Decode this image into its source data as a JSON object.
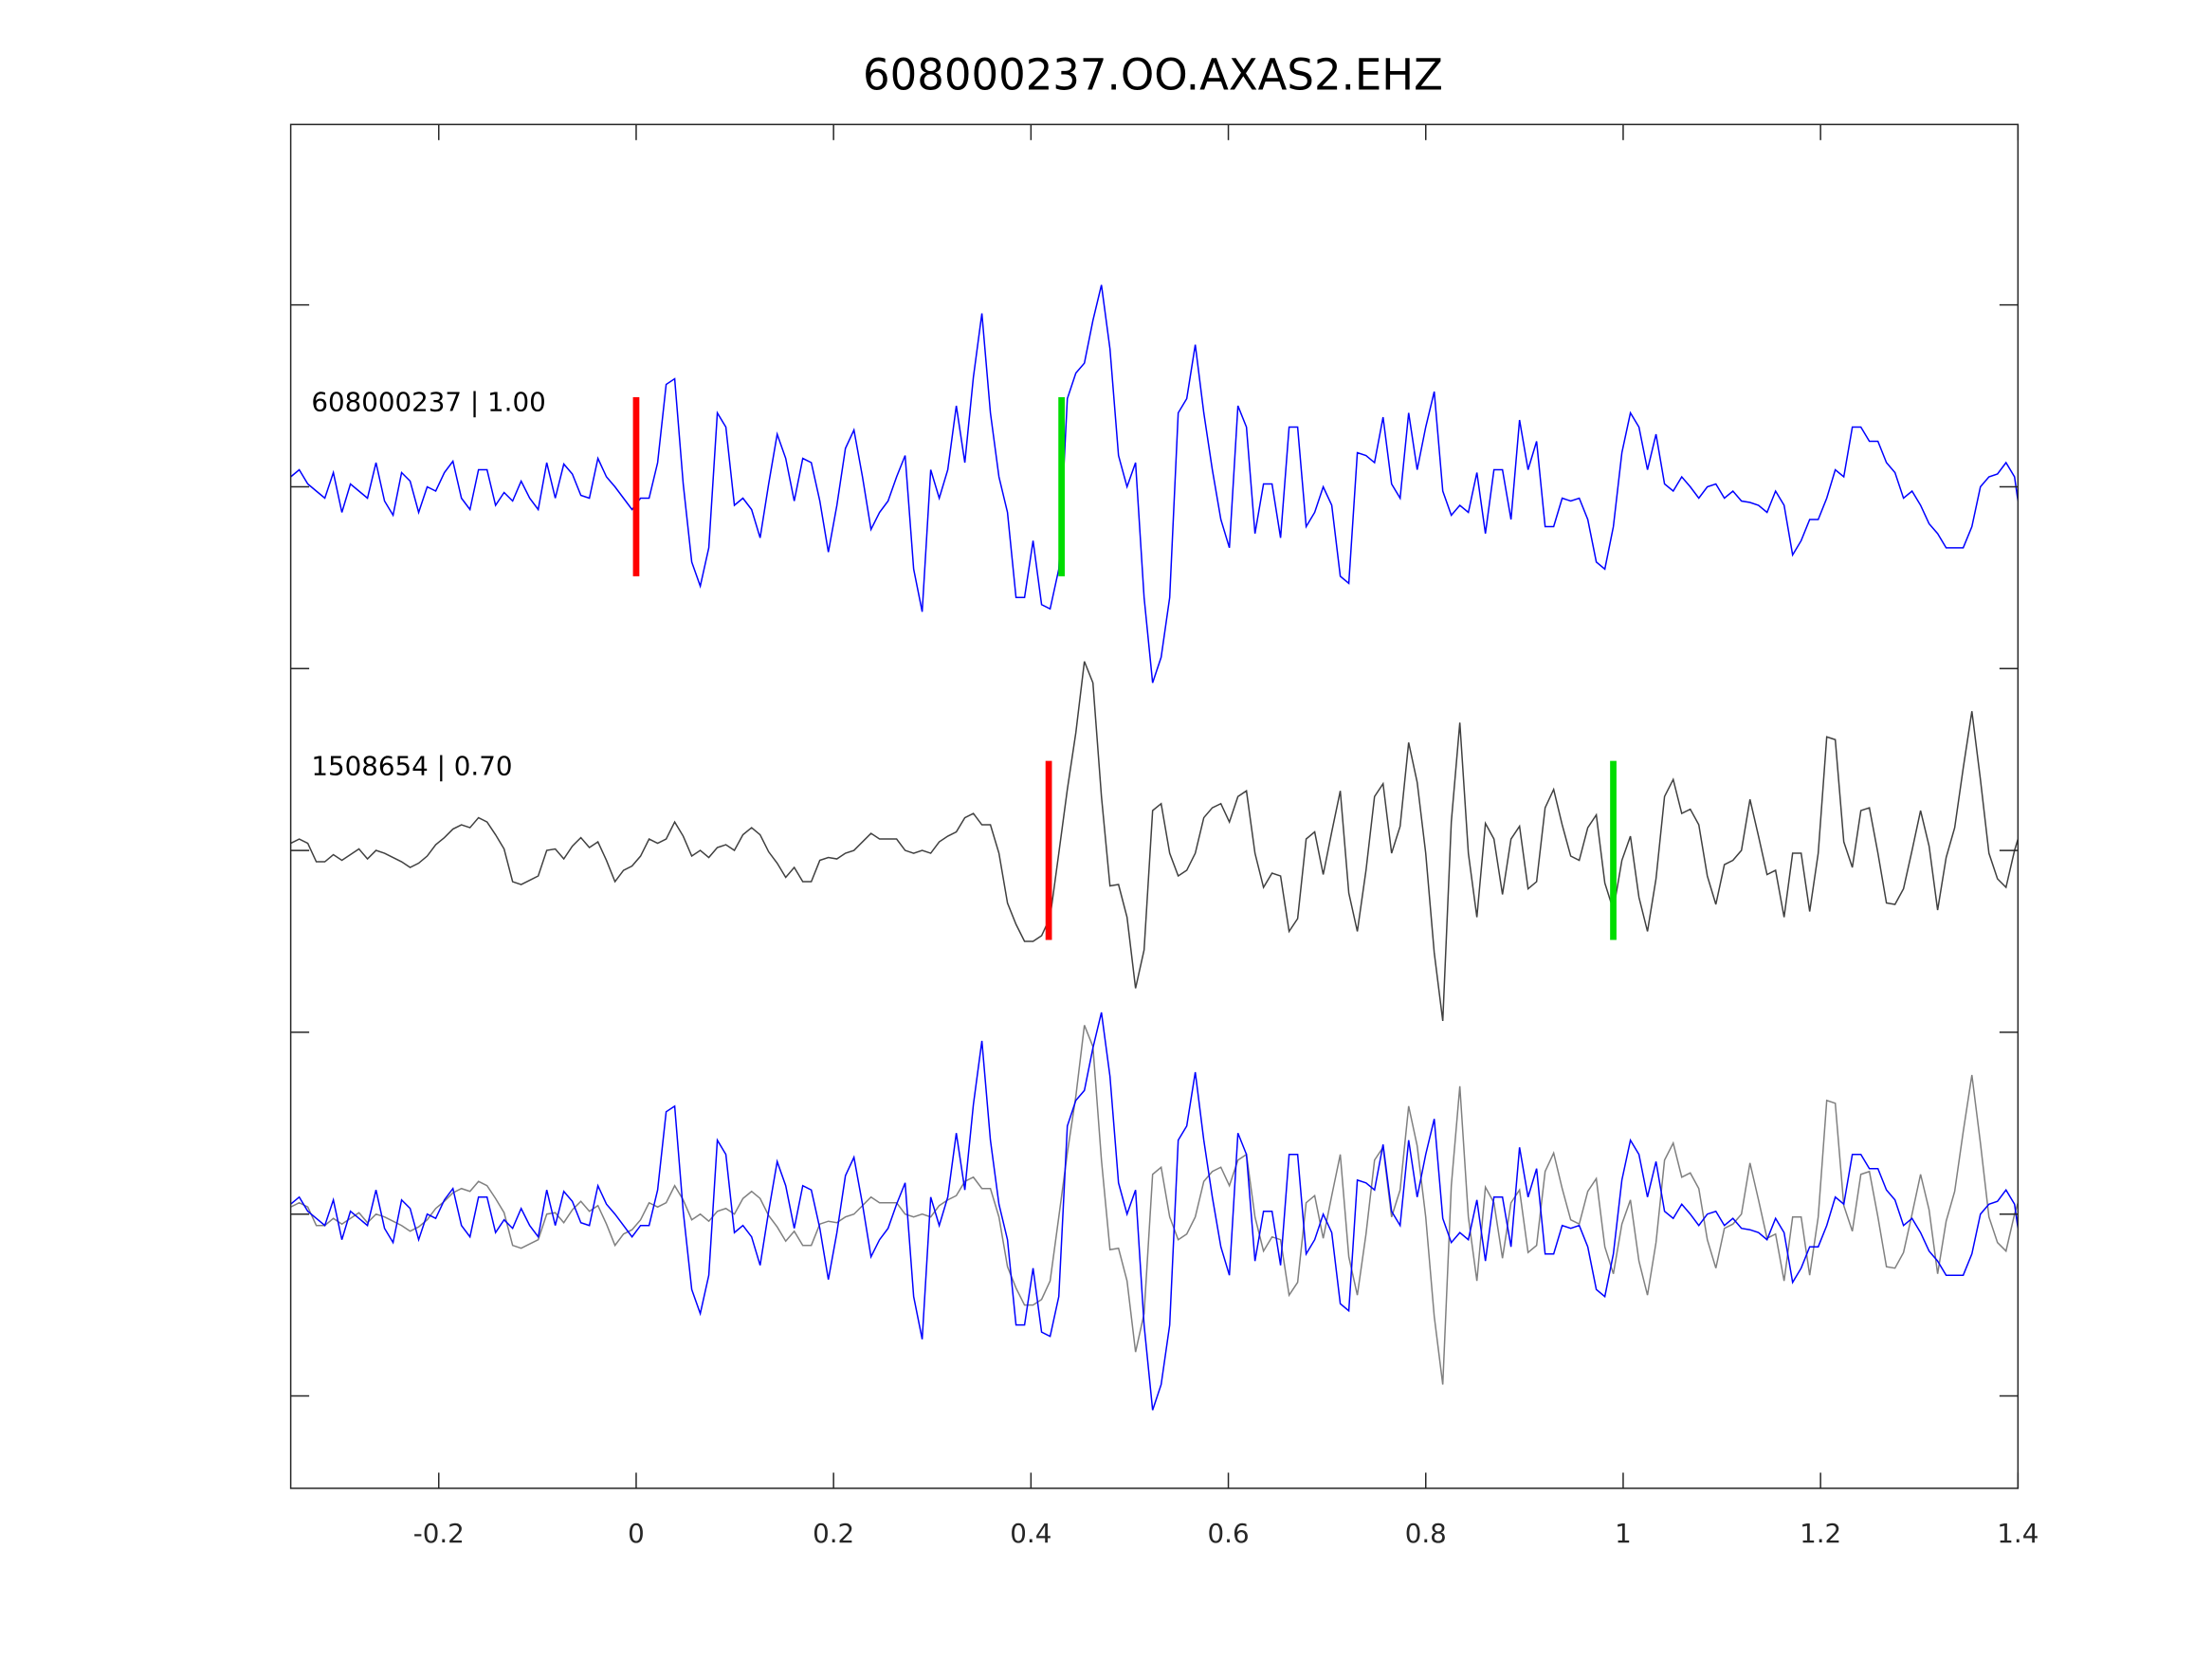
{
  "chart_data": {
    "type": "line",
    "title": "608000237.OO.AXAS2.EHZ",
    "xlabel": "",
    "ylabel": "",
    "xlim": [
      -0.35,
      1.4
    ],
    "ylim": [
      -705,
      255
    ],
    "xticks": [
      -0.2,
      0,
      0.2,
      0.4,
      0.6,
      0.8,
      1,
      1.2,
      1.4
    ],
    "xtick_labels": [
      "-0.2",
      "0",
      "0.2",
      "0.4",
      "0.6",
      "0.8",
      "1",
      "1.2",
      "1.4"
    ],
    "yticks": [
      128,
      0,
      -128,
      -256,
      -384,
      -512,
      -640
    ],
    "ytick_labels_visible": false,
    "grid": false,
    "amp_scale": 0.01,
    "traces": [
      {
        "name": "608000237",
        "label": "608000237 | 1.00",
        "color": "#0000ff",
        "offset": 0,
        "t_start": -0.35,
        "dt": 0.008646,
        "amp": [
          7,
          12,
          2,
          -3,
          -8,
          10,
          -18,
          2,
          -3,
          -8,
          17,
          -10,
          -20,
          10,
          4,
          -18,
          0,
          -3,
          10,
          18,
          -8,
          -16,
          12,
          12,
          -13,
          -4,
          -10,
          4,
          -8,
          -16,
          17,
          -8,
          16,
          9,
          -6,
          -8,
          20,
          7,
          0,
          -8,
          -16,
          -8,
          -8,
          17,
          72,
          76,
          2,
          -53,
          -70,
          -43,
          52,
          42,
          -13,
          -8,
          -16,
          -36,
          2,
          37,
          20,
          -10,
          20,
          17,
          -10,
          -46,
          -13,
          27,
          40,
          7,
          -30,
          -18,
          -10,
          7,
          22,
          -58,
          -88,
          12,
          -8,
          12,
          57,
          17,
          77,
          122,
          52,
          7,
          -18,
          -78,
          -78,
          -38,
          -83,
          -86,
          -58,
          62,
          80,
          87,
          117,
          142,
          97,
          22,
          0,
          17,
          -78,
          -138,
          -120,
          -78,
          52,
          62,
          100,
          52,
          12,
          -23,
          -43,
          57,
          42,
          -33,
          2,
          2,
          -36,
          42,
          42,
          -28,
          -18,
          0,
          -13,
          -63,
          -68,
          24,
          22,
          17,
          49,
          2,
          -8,
          52,
          12,
          42,
          67,
          -3,
          -20,
          -13,
          -18,
          10,
          -33,
          12,
          12,
          -23,
          47,
          12,
          32,
          -28,
          -28,
          -8,
          -10,
          -8,
          -23,
          -53,
          -58,
          -28,
          24,
          52,
          42,
          12,
          37,
          2,
          -3,
          7,
          0,
          -8,
          0,
          2,
          -8,
          -3,
          -10,
          -11,
          -13,
          -18,
          -3,
          -13,
          -48,
          -38,
          -23,
          -23,
          -8,
          12,
          7,
          42,
          42,
          32,
          32,
          17,
          10,
          -8,
          -3,
          -13,
          -26,
          -33,
          -43,
          -43,
          -43,
          -28,
          0,
          7,
          9,
          17,
          7,
          -10
        ],
        "picks": [
          {
            "phase": "P",
            "t": 0.0,
            "color": "#ff0000"
          },
          {
            "phase": "S",
            "t": 0.431,
            "color": "#00dd00"
          }
        ]
      },
      {
        "name": "1508654",
        "label": "1508654 | 0.70",
        "color": "#404040",
        "offset": -256,
        "t_start": -0.35,
        "dt": 0.008646,
        "amp": [
          5,
          8,
          5,
          -8,
          -8,
          -3,
          -7,
          -3,
          1,
          -6,
          0,
          -2,
          -5,
          -8,
          -12,
          -9,
          -4,
          4,
          9,
          15,
          18,
          16,
          23,
          20,
          11,
          1,
          -22,
          -24,
          -21,
          -18,
          0,
          1,
          -6,
          3,
          9,
          2,
          6,
          -7,
          -22,
          -14,
          -11,
          -4,
          8,
          5,
          8,
          20,
          10,
          -4,
          0,
          -5,
          2,
          4,
          0,
          11,
          16,
          11,
          -1,
          -9,
          -19,
          -12,
          -22,
          -22,
          -7,
          -5,
          -6,
          -2,
          0,
          6,
          12,
          8,
          8,
          8,
          0,
          -2,
          0,
          -2,
          6,
          10,
          13,
          23,
          26,
          18,
          18,
          -2,
          -37,
          -52,
          -64,
          -64,
          -60,
          -47,
          -2,
          43,
          83,
          133,
          118,
          38,
          -25,
          -24,
          -47,
          -97,
          -70,
          28,
          33,
          -2,
          -18,
          -14,
          -2,
          23,
          30,
          33,
          20,
          38,
          42,
          -2,
          -26,
          -16,
          -18,
          -57,
          -48,
          8,
          13,
          -17,
          13,
          42,
          -30,
          -57,
          -14,
          38,
          47,
          -2,
          17,
          76,
          48,
          -2,
          -72,
          -120,
          20,
          90,
          -2,
          -47,
          19,
          8,
          -31,
          8,
          17,
          -27,
          -22,
          30,
          43,
          18,
          -4,
          -7,
          16,
          25,
          -23,
          -42,
          -7,
          10,
          -33,
          -57,
          -20,
          38,
          50,
          26,
          29,
          18,
          -18,
          -38,
          -10,
          -7,
          0,
          36,
          10,
          -17,
          -14,
          -47,
          -2,
          -2,
          -43,
          -2,
          80,
          78,
          6,
          -12,
          28,
          30,
          -2,
          -37,
          -38,
          -27,
          0,
          28,
          3,
          -42,
          -5,
          16,
          58,
          98,
          50,
          -2,
          -20,
          -26,
          0,
          8
        ],
        "picks": [
          {
            "phase": "P",
            "t": 0.418,
            "color": "#ff0000"
          },
          {
            "phase": "S",
            "t": 0.99,
            "color": "#00dd00"
          }
        ]
      }
    ],
    "overlay": {
      "offset": -512,
      "colors": [
        "#0000ff",
        "#808080"
      ]
    },
    "pick_half_height": 63
  }
}
